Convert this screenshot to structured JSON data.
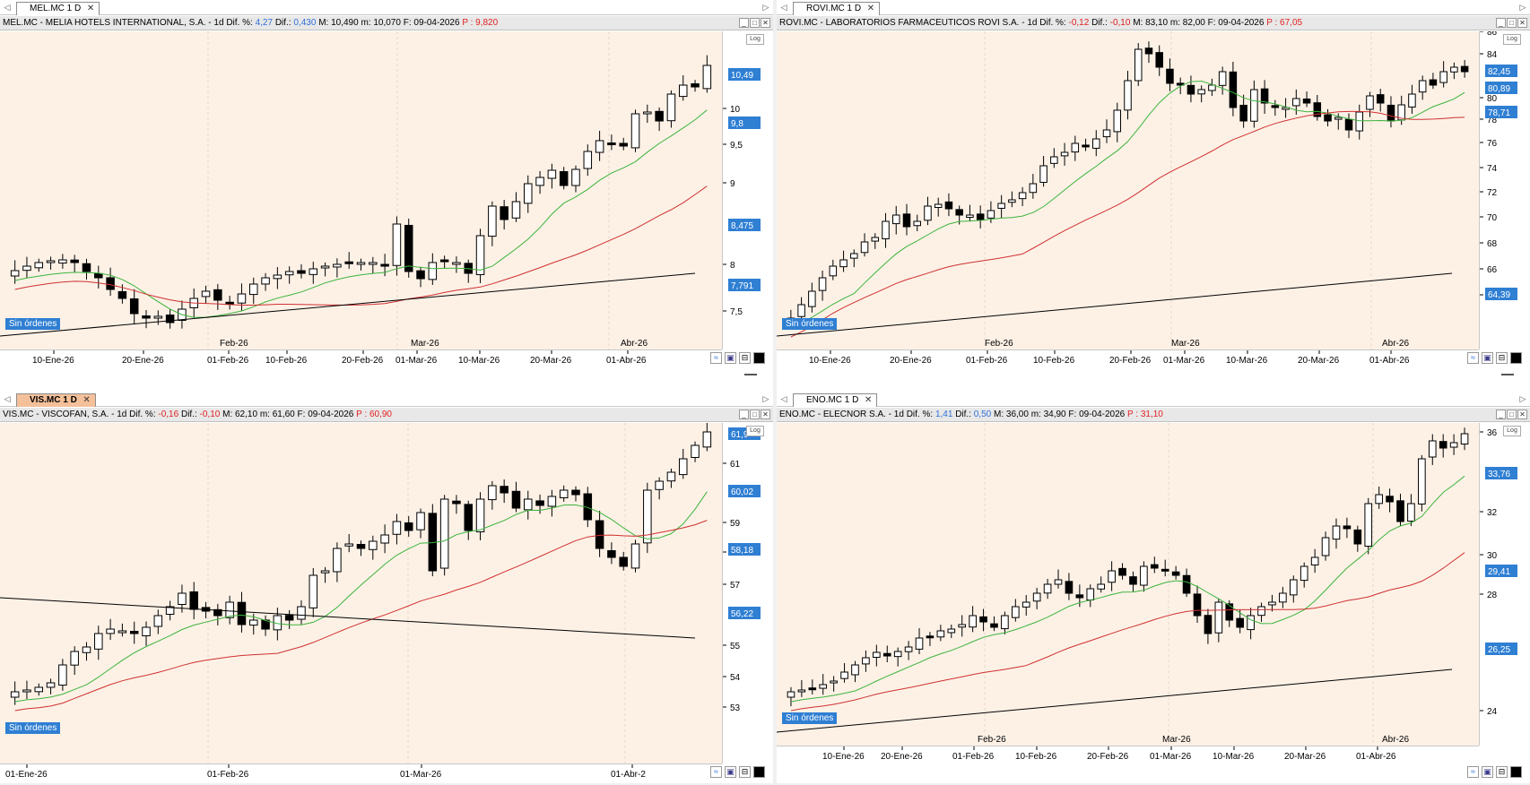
{
  "status_label": "Sin órdenes",
  "colors": {
    "plot_bg": "#fdf1e6",
    "up": "#ffffff",
    "down": "#000000",
    "ma_short": "#3cb43c",
    "ma_mid": "#d03030",
    "ma_long": "#000000",
    "label_bg": "#2f7fd3"
  },
  "panes": [
    {
      "id": "mel",
      "tab_label": "MEL.MC 1 D",
      "info": {
        "name": "MEL.MC - MELIA HOTELS INTERNATIONAL, S.A. -",
        "period": "1d",
        "dif_pct_label": "Dif. %:",
        "dif_pct": "4,27",
        "dif_label": "Dif.:",
        "dif": "0,430",
        "max_label": "M:",
        "max": "10,490",
        "min_label": "m:",
        "min": "10,070",
        "date_label": "F:",
        "date": "09-04-2026",
        "p_label": "P :",
        "p": "9,820"
      },
      "log_label": "Log",
      "y_ticks": [
        "10",
        "9,5",
        "9",
        "8",
        "7,5"
      ],
      "y_badges": [
        "10,49",
        "9,8",
        "8,475",
        "7,791"
      ],
      "x_labels": [
        "10-Ene-26",
        "20-Ene-26",
        "01-Feb-26",
        "10-Feb-26",
        "20-Feb-26",
        "01-Mar-26",
        "10-Mar-26",
        "20-Mar-26",
        "01-Abr-26"
      ],
      "month_labels": [
        "Feb-26",
        "Mar-26",
        "Abr-26"
      ]
    },
    {
      "id": "rovi",
      "tab_label": "ROVI.MC 1 D",
      "info": {
        "name": "ROVI.MC - LABORATORIOS FARMACEUTICOS ROVI S.A. -",
        "period": "1d",
        "dif_pct_label": "Dif. %:",
        "dif_pct": "-0,12",
        "dif_label": "Dif.:",
        "dif": "-0,10",
        "max_label": "M:",
        "max": "83,10",
        "min_label": "m:",
        "min": "82,00",
        "date_label": "F:",
        "date": "09-04-2026",
        "p_label": "P :",
        "p": "67,05"
      },
      "log_label": "Log",
      "y_ticks": [
        "86",
        "84",
        "80",
        "78",
        "76",
        "74",
        "72",
        "70",
        "68",
        "66",
        "64"
      ],
      "y_badges": [
        "82,45",
        "80,89",
        "78,71",
        "64,39"
      ],
      "x_labels": [
        "10-Ene-26",
        "20-Ene-26",
        "01-Feb-26",
        "10-Feb-26",
        "20-Feb-26",
        "01-Mar-26",
        "10-Mar-26",
        "20-Mar-26",
        "01-Abr-26"
      ],
      "month_labels": [
        "Feb-26",
        "Mar-26",
        "Abr-26"
      ]
    },
    {
      "id": "vis",
      "tab_label": "VIS.MC 1 D",
      "info": {
        "name": "VIS.MC - VISCOFAN, S.A. -",
        "period": "1d",
        "dif_pct_label": "Dif. %:",
        "dif_pct": "-0,16",
        "dif_label": "Dif.:",
        "dif": "-0,10",
        "max_label": "M:",
        "max": "62,10",
        "min_label": "m:",
        "min": "61,60",
        "date_label": "F:",
        "date": "09-04-2026",
        "p_label": "P :",
        "p": "60,90"
      },
      "log_label": "Log",
      "y_ticks": [
        "61",
        "59",
        "58",
        "57",
        "55",
        "54",
        "53"
      ],
      "y_badges": [
        "61,9",
        "60,02",
        "58,18",
        "56,22"
      ],
      "x_labels": [
        "01-Ene-26",
        "01-Feb-26",
        "01-Mar-26",
        "01-Abr-2"
      ],
      "month_labels": []
    },
    {
      "id": "eno",
      "tab_label": "ENO.MC 1 D",
      "info": {
        "name": "ENO.MC - ELECNOR S.A. -",
        "period": "1d",
        "dif_pct_label": "Dif. %:",
        "dif_pct": "1,41",
        "dif_label": "Dif.:",
        "dif": "0,50",
        "max_label": "M:",
        "max": "36,00",
        "min_label": "m:",
        "min": "34,90",
        "date_label": "F:",
        "date": "09-04-2026",
        "p_label": "P :",
        "p": "31,10"
      },
      "log_label": "Log",
      "y_ticks": [
        "36",
        "32",
        "30",
        "28",
        "24"
      ],
      "y_badges": [
        "33,76",
        "29,41",
        "26,25"
      ],
      "x_labels": [
        "10-Ene-26",
        "20-Ene-26",
        "01-Feb-26",
        "10-Feb-26",
        "20-Feb-26",
        "01-Mar-26",
        "10-Mar-26",
        "20-Mar-26",
        "01-Abr-26"
      ],
      "month_labels": [
        "Feb-26",
        "Mar-26",
        "Abr-26"
      ]
    }
  ]
}
